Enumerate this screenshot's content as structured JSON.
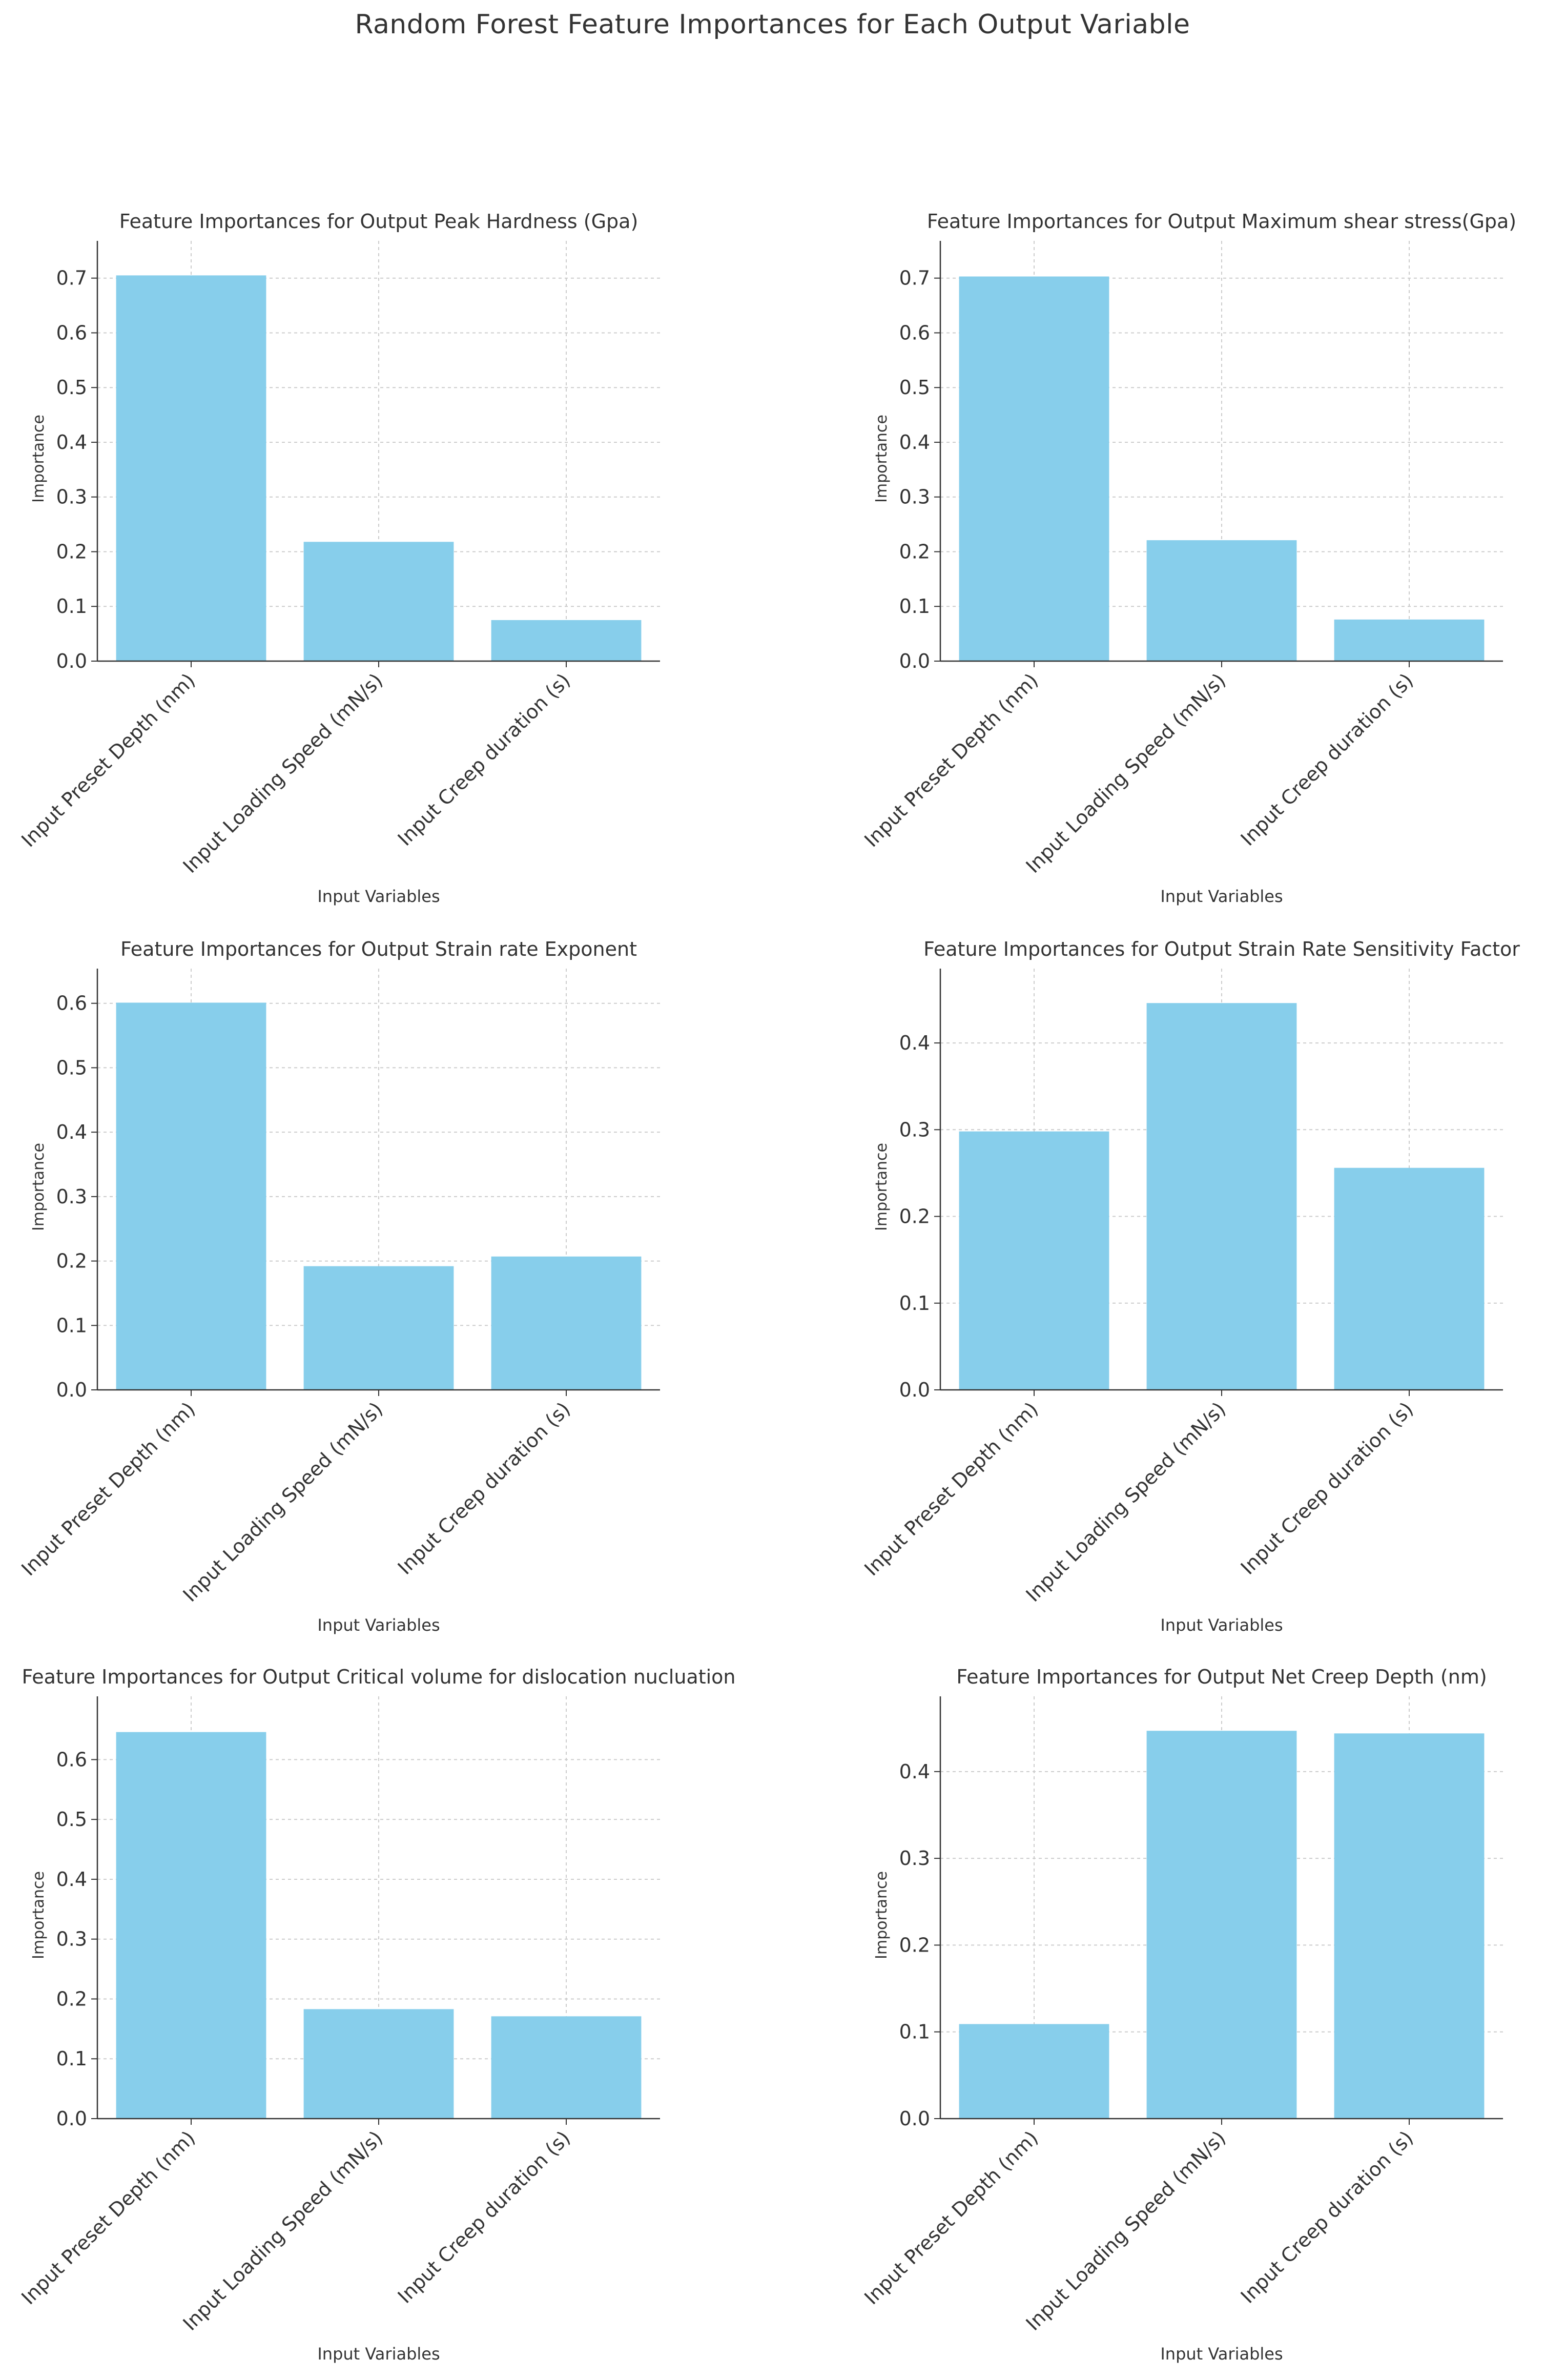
{
  "figure_title": "Random Forest Feature Importances for Each Output Variable",
  "colors": {
    "bar": "#87ceeb",
    "axis": "#333333",
    "grid": "#cccccc",
    "text": "#333333"
  },
  "chart_data": [
    {
      "type": "bar",
      "title": "Feature Importances for Output Peak Hardness (Gpa)",
      "xlabel": "Input Variables",
      "ylabel": "Importance",
      "categories": [
        "Input Preset Depth (nm)",
        "Input Loading Speed (mN/s)",
        "Input Creep duration (s)"
      ],
      "values": [
        0.705,
        0.218,
        0.075
      ],
      "ylim": [
        0,
        0.74
      ],
      "yticks": [
        0.0,
        0.1,
        0.2,
        0.3,
        0.4,
        0.5,
        0.6,
        0.7
      ],
      "ytick_labels": [
        "0.0",
        "0.1",
        "0.2",
        "0.3",
        "0.4",
        "0.5",
        "0.6",
        "0.7"
      ],
      "grid": true
    },
    {
      "type": "bar",
      "title": "Feature Importances for Output Maximum shear stress(Gpa)",
      "xlabel": "Input Variables",
      "ylabel": "Importance",
      "categories": [
        "Input Preset Depth (nm)",
        "Input Loading Speed (mN/s)",
        "Input Creep duration (s)"
      ],
      "values": [
        0.703,
        0.221,
        0.076
      ],
      "ylim": [
        0,
        0.74
      ],
      "yticks": [
        0.0,
        0.1,
        0.2,
        0.3,
        0.4,
        0.5,
        0.6,
        0.7
      ],
      "ytick_labels": [
        "0.0",
        "0.1",
        "0.2",
        "0.3",
        "0.4",
        "0.5",
        "0.6",
        "0.7"
      ],
      "grid": true
    },
    {
      "type": "bar",
      "title": "Feature Importances for Output Strain rate Exponent",
      "xlabel": "Input Variables",
      "ylabel": "Importance",
      "categories": [
        "Input Preset Depth (nm)",
        "Input Loading Speed (mN/s)",
        "Input Creep duration (s)"
      ],
      "values": [
        0.601,
        0.192,
        0.207
      ],
      "ylim": [
        0,
        0.63
      ],
      "yticks": [
        0.0,
        0.1,
        0.2,
        0.3,
        0.4,
        0.5,
        0.6
      ],
      "ytick_labels": [
        "0.0",
        "0.1",
        "0.2",
        "0.3",
        "0.4",
        "0.5",
        "0.6"
      ],
      "grid": true
    },
    {
      "type": "bar",
      "title": "Feature Importances for Output Strain Rate Sensitivity Factor",
      "xlabel": "Input Variables",
      "ylabel": "Importance",
      "categories": [
        "Input Preset Depth (nm)",
        "Input Loading Speed (mN/s)",
        "Input Creep duration (s)"
      ],
      "values": [
        0.298,
        0.446,
        0.256
      ],
      "ylim": [
        0,
        0.468
      ],
      "yticks": [
        0.0,
        0.1,
        0.2,
        0.3,
        0.4
      ],
      "ytick_labels": [
        "0.0",
        "0.1",
        "0.2",
        "0.3",
        "0.4"
      ],
      "grid": true
    },
    {
      "type": "bar",
      "title": "Feature Importances for Output Critical volume for dislocation nucluation",
      "xlabel": "Input Variables",
      "ylabel": "Importance",
      "categories": [
        "Input Preset Depth (nm)",
        "Input Loading Speed (mN/s)",
        "Input Creep duration (s)"
      ],
      "values": [
        0.646,
        0.183,
        0.171
      ],
      "ylim": [
        0,
        0.68
      ],
      "yticks": [
        0.0,
        0.1,
        0.2,
        0.3,
        0.4,
        0.5,
        0.6
      ],
      "ytick_labels": [
        "0.0",
        "0.1",
        "0.2",
        "0.3",
        "0.4",
        "0.5",
        "0.6"
      ],
      "grid": true
    },
    {
      "type": "bar",
      "title": "Feature Importances for Output Net Creep Depth (nm)",
      "xlabel": "Input Variables",
      "ylabel": "Importance",
      "categories": [
        "Input Preset Depth (nm)",
        "Input Loading Speed (mN/s)",
        "Input Creep duration (s)"
      ],
      "values": [
        0.109,
        0.447,
        0.444
      ],
      "ylim": [
        0,
        0.469
      ],
      "yticks": [
        0.0,
        0.1,
        0.2,
        0.3,
        0.4
      ],
      "ytick_labels": [
        "0.0",
        "0.1",
        "0.2",
        "0.3",
        "0.4"
      ],
      "grid": true
    }
  ]
}
